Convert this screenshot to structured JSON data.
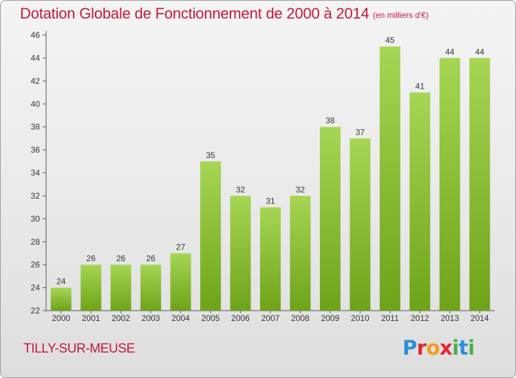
{
  "title": "Dotation Globale de Fonctionnement de 2000 à 2014",
  "unit": "(en milliers d'€)",
  "place": "TILLY-SUR-MEUSE",
  "logo": "Proxiti",
  "colors": {
    "bar_light": "#a6d654",
    "bar_dark": "#6ea318",
    "title": "#c41840"
  },
  "chart_data": {
    "type": "bar",
    "title": "Dotation Globale de Fonctionnement de 2000 à 2014",
    "subtitle": "(en milliers d'€)",
    "xlabel": "",
    "ylabel": "",
    "categories": [
      "2000",
      "2001",
      "2002",
      "2003",
      "2004",
      "2005",
      "2006",
      "2007",
      "2008",
      "2009",
      "2010",
      "2011",
      "2012",
      "2013",
      "2014"
    ],
    "values": [
      24,
      26,
      26,
      26,
      27,
      35,
      32,
      31,
      32,
      38,
      37,
      45,
      41,
      44,
      44
    ],
    "ylim": [
      22,
      46
    ],
    "yticks": [
      22,
      24,
      26,
      28,
      30,
      32,
      34,
      36,
      38,
      40,
      42,
      44,
      46
    ],
    "grid": false,
    "data_labels": true
  }
}
